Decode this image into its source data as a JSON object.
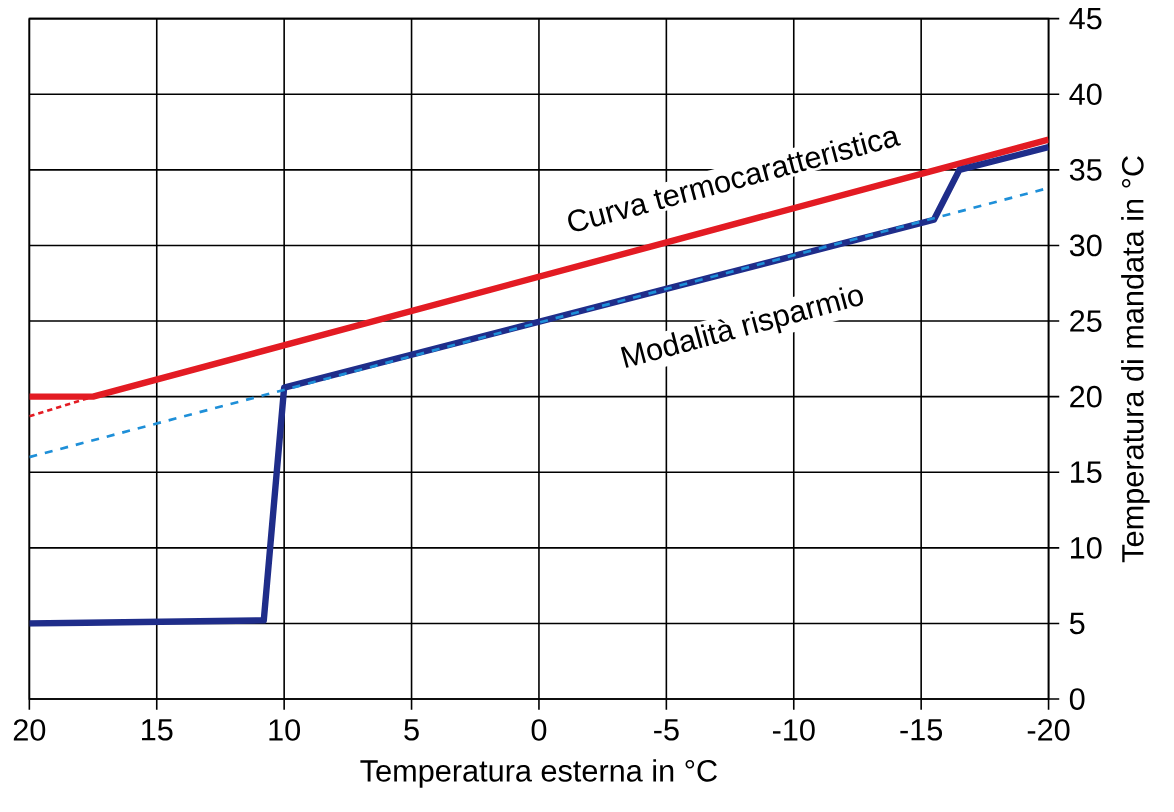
{
  "chart_data": {
    "type": "line",
    "xlabel": "Temperatura esterna in °C",
    "ylabel": "Temperatura di mandata in °C",
    "xlim": [
      20,
      -20
    ],
    "xticks": [
      20,
      15,
      10,
      5,
      0,
      -5,
      -10,
      -15,
      -20
    ],
    "ylim": [
      0,
      45
    ],
    "yticks": [
      0,
      5,
      10,
      15,
      20,
      25,
      30,
      35,
      40,
      45
    ],
    "grid": true,
    "marker": "none",
    "series": [
      {
        "color": "#e31b23",
        "line_style": "dotted",
        "x": [
          20,
          17.5
        ],
        "values": [
          18.7,
          20
        ]
      },
      {
        "color": "#e31b23",
        "line_style": "solid",
        "x": [
          20,
          17.5,
          -20
        ],
        "values": [
          20,
          20,
          37
        ]
      },
      {
        "color": "#1f2d8a",
        "line_style": "solid",
        "x": [
          20,
          10.8,
          10,
          -15.5,
          -16.5,
          -20
        ],
        "values": [
          5,
          5.2,
          20.6,
          31.7,
          35,
          36.5
        ]
      },
      {
        "color": "#1e8fd8",
        "line_style": "dashed",
        "x": [
          20,
          -20
        ],
        "values": [
          16,
          33.8
        ]
      }
    ],
    "annotations": [
      "Curva termocaratteristica",
      "Modalità risparmio"
    ]
  }
}
